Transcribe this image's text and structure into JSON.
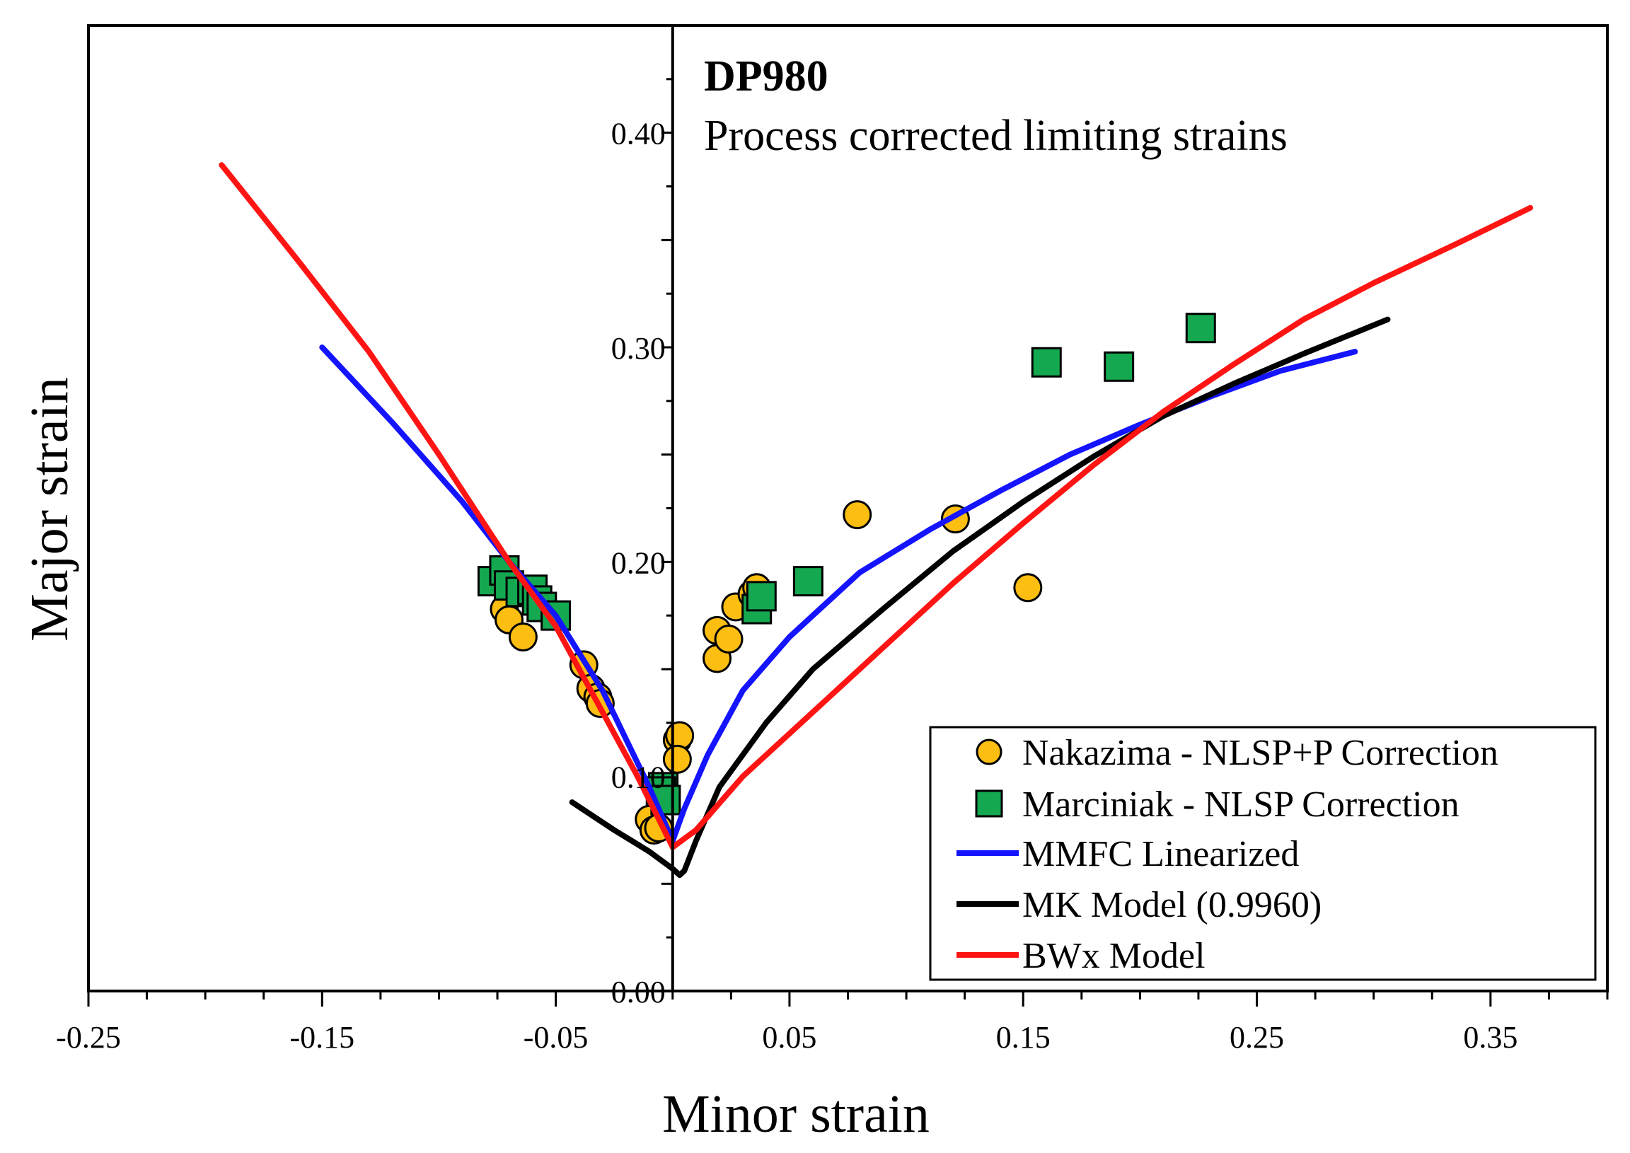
{
  "chart_data": {
    "type": "scatter",
    "title": "DP980",
    "subtitle": "Process corrected limiting strains",
    "xlabel": "Minor strain",
    "ylabel": "Major strain",
    "xlim": [
      -0.25,
      0.4
    ],
    "ylim": [
      0.0,
      0.45
    ],
    "x_ticks": [
      -0.25,
      -0.15,
      -0.05,
      0.05,
      0.15,
      0.25,
      0.35
    ],
    "x_tick_labels": [
      "-0.25",
      "-0.15",
      "-0.05",
      "0.05",
      "0.15",
      "0.25",
      "0.35"
    ],
    "y_ticks": [
      0.1,
      0.2,
      0.3,
      0.4
    ],
    "y_tick_labels": [
      "0.10",
      "0.20",
      "0.30",
      "0.40"
    ],
    "y_zero_label": "0.00",
    "legend_position": "bottom-right",
    "series": [
      {
        "name": "Nakazima - NLSP+P Correction",
        "kind": "points",
        "marker": "circle",
        "color": "#FDBE12",
        "points": [
          [
            -0.072,
            0.178
          ],
          [
            -0.07,
            0.173
          ],
          [
            -0.064,
            0.165
          ],
          [
            -0.038,
            0.152
          ],
          [
            -0.035,
            0.141
          ],
          [
            -0.032,
            0.137
          ],
          [
            -0.031,
            0.134
          ],
          [
            -0.01,
            0.08
          ],
          [
            -0.008,
            0.075
          ],
          [
            -0.006,
            0.076
          ],
          [
            0.002,
            0.117
          ],
          [
            0.003,
            0.119
          ],
          [
            0.002,
            0.108
          ],
          [
            0.019,
            0.155
          ],
          [
            0.019,
            0.168
          ],
          [
            0.024,
            0.164
          ],
          [
            0.027,
            0.179
          ],
          [
            0.034,
            0.185
          ],
          [
            0.036,
            0.188
          ],
          [
            0.079,
            0.222
          ],
          [
            0.121,
            0.22
          ],
          [
            0.152,
            0.188
          ]
        ]
      },
      {
        "name": "Marciniak - NLSP Correction",
        "kind": "points",
        "marker": "square",
        "color": "#14A850",
        "points": [
          [
            -0.077,
            0.191
          ],
          [
            -0.072,
            0.196
          ],
          [
            -0.07,
            0.189
          ],
          [
            -0.065,
            0.186
          ],
          [
            -0.06,
            0.187
          ],
          [
            -0.058,
            0.182
          ],
          [
            -0.056,
            0.179
          ],
          [
            -0.05,
            0.175
          ],
          [
            -0.004,
            0.095
          ],
          [
            -0.005,
            0.093
          ],
          [
            -0.003,
            0.089
          ],
          [
            0.036,
            0.178
          ],
          [
            0.038,
            0.184
          ],
          [
            0.058,
            0.191
          ],
          [
            0.16,
            0.293
          ],
          [
            0.191,
            0.291
          ],
          [
            0.226,
            0.309
          ]
        ]
      },
      {
        "name": "MMFC Linearized",
        "kind": "line",
        "color": "#1414FF",
        "points": [
          [
            -0.15,
            0.3
          ],
          [
            -0.12,
            0.265
          ],
          [
            -0.09,
            0.228
          ],
          [
            -0.07,
            0.2
          ],
          [
            -0.05,
            0.175
          ],
          [
            -0.03,
            0.14
          ],
          [
            -0.01,
            0.095
          ],
          [
            0.0,
            0.07
          ],
          [
            0.005,
            0.085
          ],
          [
            0.015,
            0.11
          ],
          [
            0.03,
            0.14
          ],
          [
            0.05,
            0.165
          ],
          [
            0.08,
            0.195
          ],
          [
            0.11,
            0.215
          ],
          [
            0.14,
            0.233
          ],
          [
            0.17,
            0.25
          ],
          [
            0.2,
            0.264
          ],
          [
            0.23,
            0.277
          ],
          [
            0.26,
            0.289
          ],
          [
            0.292,
            0.298
          ]
        ]
      },
      {
        "name": "MK Model (0.9960)",
        "kind": "line",
        "color": "#000000",
        "points": [
          [
            -0.043,
            0.088
          ],
          [
            -0.025,
            0.075
          ],
          [
            -0.01,
            0.065
          ],
          [
            0.0,
            0.057
          ],
          [
            0.003,
            0.054
          ],
          [
            0.005,
            0.056
          ],
          [
            0.01,
            0.07
          ],
          [
            0.02,
            0.095
          ],
          [
            0.04,
            0.125
          ],
          [
            0.06,
            0.15
          ],
          [
            0.09,
            0.178
          ],
          [
            0.12,
            0.205
          ],
          [
            0.15,
            0.228
          ],
          [
            0.18,
            0.249
          ],
          [
            0.21,
            0.268
          ],
          [
            0.24,
            0.283
          ],
          [
            0.27,
            0.297
          ],
          [
            0.306,
            0.313
          ]
        ]
      },
      {
        "name": "BWx Model",
        "kind": "line",
        "color": "#FF1414",
        "points": [
          [
            -0.193,
            0.385
          ],
          [
            -0.16,
            0.34
          ],
          [
            -0.13,
            0.298
          ],
          [
            -0.1,
            0.25
          ],
          [
            -0.07,
            0.2
          ],
          [
            -0.05,
            0.17
          ],
          [
            -0.03,
            0.13
          ],
          [
            -0.015,
            0.1
          ],
          [
            -0.005,
            0.078
          ],
          [
            0.0,
            0.067
          ],
          [
            0.01,
            0.075
          ],
          [
            0.03,
            0.1
          ],
          [
            0.06,
            0.13
          ],
          [
            0.09,
            0.16
          ],
          [
            0.12,
            0.19
          ],
          [
            0.15,
            0.218
          ],
          [
            0.18,
            0.245
          ],
          [
            0.21,
            0.27
          ],
          [
            0.24,
            0.292
          ],
          [
            0.27,
            0.313
          ],
          [
            0.3,
            0.33
          ],
          [
            0.335,
            0.348
          ],
          [
            0.367,
            0.365
          ]
        ]
      }
    ]
  }
}
